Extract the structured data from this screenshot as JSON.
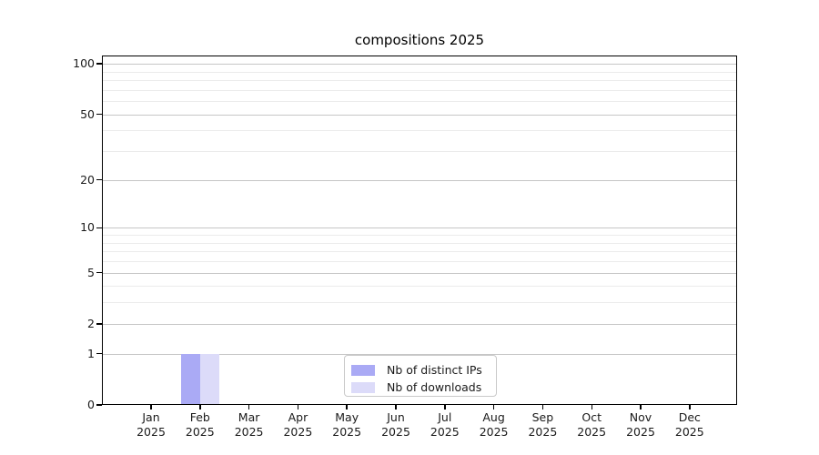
{
  "chart_data": {
    "type": "bar",
    "title": "compositions 2025",
    "categories": [
      "Jan",
      "Feb",
      "Mar",
      "Apr",
      "May",
      "Jun",
      "Jul",
      "Aug",
      "Sep",
      "Oct",
      "Nov",
      "Dec"
    ],
    "year_label": "2025",
    "series": [
      {
        "name": "Nb of distinct IPs",
        "color": "#aaaaf5",
        "values": [
          0,
          1,
          0,
          0,
          0,
          0,
          0,
          0,
          0,
          0,
          0,
          0
        ]
      },
      {
        "name": "Nb of downloads",
        "color": "#dcdbf9",
        "values": [
          0,
          1,
          0,
          0,
          0,
          0,
          0,
          0,
          0,
          0,
          0,
          0
        ]
      }
    ],
    "xlabel": "",
    "ylabel": "",
    "yscale": "log1p",
    "ylim": [
      0,
      112
    ],
    "yticks": [
      0,
      1,
      2,
      5,
      10,
      20,
      50,
      100
    ],
    "minor_yticks": [
      3,
      4,
      6,
      7,
      8,
      9,
      30,
      40,
      60,
      70,
      80,
      90
    ],
    "grid": "horizontal major+minor",
    "legend_position": "lower center"
  }
}
